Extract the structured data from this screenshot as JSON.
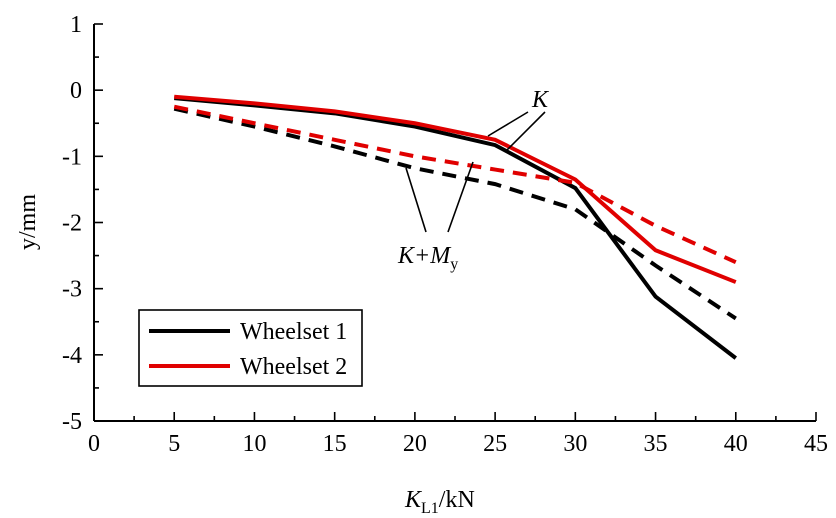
{
  "chart_data": {
    "type": "line",
    "xlabel": {
      "main": "K",
      "sub": "L1",
      "rest": "/kN"
    },
    "ylabel": "y/mm",
    "xlim": [
      0,
      45
    ],
    "ylim": [
      -5,
      1
    ],
    "xticks": [
      0,
      5,
      10,
      15,
      20,
      25,
      30,
      35,
      40,
      45
    ],
    "yticks": [
      1,
      0,
      -1,
      -2,
      -3,
      -4,
      -5
    ],
    "x": [
      5,
      10,
      15,
      20,
      25,
      30,
      35,
      40
    ],
    "series": [
      {
        "name": "Wheelset 1",
        "model": "K",
        "color": "#000000",
        "dash": "solid",
        "values": [
          -0.12,
          -0.23,
          -0.35,
          -0.55,
          -0.83,
          -1.48,
          -3.12,
          -4.05
        ]
      },
      {
        "name": "Wheelset 2",
        "model": "K",
        "color": "#e00000",
        "dash": "solid",
        "values": [
          -0.1,
          -0.2,
          -0.32,
          -0.5,
          -0.75,
          -1.35,
          -2.42,
          -2.9
        ]
      },
      {
        "name": "Wheelset 1",
        "model": "K+My",
        "color": "#000000",
        "dash": "dashed",
        "values": [
          -0.28,
          -0.55,
          -0.85,
          -1.18,
          -1.42,
          -1.8,
          -2.65,
          -3.45
        ]
      },
      {
        "name": "Wheelset 2",
        "model": "K+My",
        "color": "#e00000",
        "dash": "dashed",
        "values": [
          -0.25,
          -0.5,
          -0.75,
          -1.0,
          -1.2,
          -1.4,
          -2.05,
          -2.6
        ]
      }
    ],
    "legend": {
      "placement": "bottom-left",
      "items": [
        {
          "label": "Wheelset 1",
          "color": "#000000"
        },
        {
          "label": "Wheelset 2",
          "color": "#e00000"
        }
      ]
    },
    "annotations": [
      {
        "text": "K",
        "target_x": 25,
        "target": "solid lines"
      },
      {
        "text": "K+",
        "sub": "y",
        "main2": "M",
        "target_x": 22,
        "target": "dashed lines"
      }
    ],
    "grid": false
  }
}
